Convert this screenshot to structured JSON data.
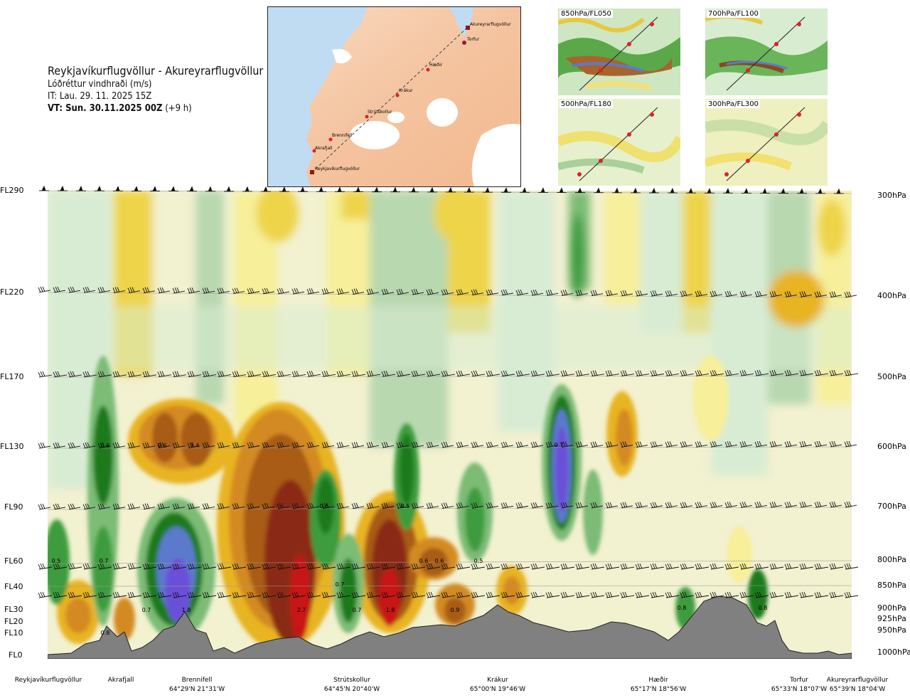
{
  "header": {
    "route": "Reykjavíkurflugvöllur - Akureyrarflugvöllur",
    "variable": "Lóðréttur vindhraði (m/s)",
    "issue_time": "IT: Lau. 29. 11. 2025 15Z",
    "valid_label": "VT: Sun. 30.11.2025 00Z",
    "valid_offset": "(+9 h)"
  },
  "map": {
    "waypoints": [
      "Reykjavíkurflugvöllur",
      "Akrafjall",
      "Brennifell",
      "Strútskollur",
      "Krákur",
      "Hæðir",
      "Torfur",
      "Akureyrarflugvöllur"
    ],
    "colors": {
      "land": "#f4c6a4",
      "sea": "#bfdcf2",
      "ice": "#ffffff",
      "track": "#333333",
      "point": "#e0202a"
    }
  },
  "mini_maps": [
    {
      "label": "850hPa/FL050"
    },
    {
      "label": "700hPa/FL100"
    },
    {
      "label": "500hPa/FL180"
    },
    {
      "label": "300hPa/FL300"
    }
  ],
  "chart_data": {
    "type": "heatmap",
    "title": "Lóðréttur vindhraði (m/s)",
    "y_left_labels": [
      "FL290",
      "FL220",
      "FL170",
      "FL130",
      "FL90",
      "FL60",
      "FL40",
      "FL30",
      "FL20",
      "FL10",
      "FL0"
    ],
    "y_right_labels": [
      "300hPa",
      "400hPa",
      "500hPa",
      "600hPa",
      "700hPa",
      "800hPa",
      "850hPa",
      "900hPa",
      "925hPa",
      "950hPa",
      "1000hPa"
    ],
    "x_locations": [
      {
        "name": "Reykjavíkurflugvöllur",
        "coord": ""
      },
      {
        "name": "Akrafjall",
        "coord": ""
      },
      {
        "name": "Brennifell",
        "coord": "64°29'N 21°31'W"
      },
      {
        "name": "Strútskollur",
        "coord": "64°45'N 20°40'W"
      },
      {
        "name": "Krákur",
        "coord": "65°00'N 19°46'W"
      },
      {
        "name": "Hæðir",
        "coord": "65°17'N 18°56'W"
      },
      {
        "name": "Torfur",
        "coord": "65°33'N 18°07'W"
      },
      {
        "name": "Akureyrarflugvöllur",
        "coord": "65°39'N 18°04'W"
      }
    ],
    "value_labels": [
      "0.5",
      "0.6",
      "0.6",
      "1.4",
      "0.7",
      "0.6",
      "0.5",
      "0.7",
      "0.6",
      "0.6",
      "0.5",
      "0.7",
      "0.7",
      "1.8",
      "2.7",
      "0.7",
      "1.8",
      "0.9",
      "0.8",
      "0.8",
      "0.8"
    ],
    "palette": [
      "#f2f2c8",
      "#f7ef9a",
      "#eed44a",
      "#e8b420",
      "#d48a22",
      "#a85c18",
      "#8a2a14",
      "#c81414",
      "#d8ecd4",
      "#b8d8b0",
      "#7cbc74",
      "#3c9c3c",
      "#1a7a1a",
      "#5c7acc",
      "#6a50d8"
    ],
    "terrain_color": "#808080"
  }
}
